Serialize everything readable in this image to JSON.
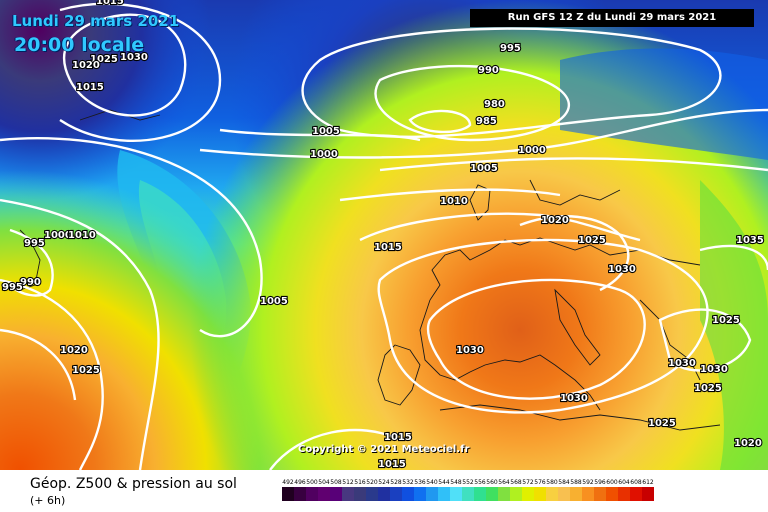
{
  "header": {
    "date": "Lundi 29 mars 2021",
    "local_time": "20:00 locale",
    "run_info": "Run GFS 12 Z du Lundi 29 mars 2021"
  },
  "copyright": "Copyright © 2021 Meteociel.fr",
  "footer": {
    "title": "Géop. Z500 & pression au sol",
    "subtitle": "(+ 6h)"
  },
  "colors": {
    "z500_scale": [
      "#200020",
      "#380040",
      "#500060",
      "#600070",
      "#580078",
      "#483880",
      "#3a3a7a",
      "#2a3a8c",
      "#2030a0",
      "#1a40c0",
      "#1050e0",
      "#1070f0",
      "#2098f0",
      "#30c0f8",
      "#50e0f8",
      "#40e0c0",
      "#30e090",
      "#40e060",
      "#80e040",
      "#b0f020",
      "#e0f000",
      "#f0e000",
      "#f8d040",
      "#f8c050",
      "#f8b030",
      "#f89020",
      "#f07010",
      "#f05000",
      "#e83000",
      "#e01000",
      "#c80000",
      "#a00000",
      "#800000",
      "#600000"
    ]
  },
  "legend": {
    "scale_values": [
      "492",
      "496",
      "500",
      "504",
      "508",
      "512",
      "516",
      "520",
      "524",
      "528",
      "532",
      "536",
      "540",
      "544",
      "548",
      "552",
      "556",
      "560",
      "564",
      "568",
      "572",
      "576",
      "580",
      "584",
      "588",
      "592",
      "596",
      "600",
      "604",
      "608",
      "612"
    ]
  },
  "isobar_labels": [
    {
      "id": "l1",
      "text": "1015"
    },
    {
      "id": "l2",
      "text": "1025"
    },
    {
      "id": "l3",
      "text": "1030"
    },
    {
      "id": "l4",
      "text": "1020"
    },
    {
      "id": "l5",
      "text": "1015"
    },
    {
      "id": "l6",
      "text": "995"
    },
    {
      "id": "l7",
      "text": "990"
    },
    {
      "id": "l8",
      "text": "980"
    },
    {
      "id": "l9",
      "text": "985"
    },
    {
      "id": "l10",
      "text": "1005"
    },
    {
      "id": "l11",
      "text": "1000"
    },
    {
      "id": "l12",
      "text": "1000"
    },
    {
      "id": "l13",
      "text": "1005"
    },
    {
      "id": "l14",
      "text": "1010"
    },
    {
      "id": "l15",
      "text": "1020"
    },
    {
      "id": "l16",
      "text": "1025"
    },
    {
      "id": "l17",
      "text": "1015"
    },
    {
      "id": "l18",
      "text": "1030"
    },
    {
      "id": "l19",
      "text": "1035"
    },
    {
      "id": "l20",
      "text": "995"
    },
    {
      "id": "l21",
      "text": "1000"
    },
    {
      "id": "l22",
      "text": "1010"
    },
    {
      "id": "l23",
      "text": "990"
    },
    {
      "id": "l24",
      "text": "995"
    },
    {
      "id": "l25",
      "text": "1005"
    },
    {
      "id": "l26",
      "text": "1020"
    },
    {
      "id": "l27",
      "text": "1025"
    },
    {
      "id": "l28",
      "text": "1030"
    },
    {
      "id": "l29",
      "text": "1025"
    },
    {
      "id": "l30",
      "text": "1030"
    },
    {
      "id": "l31",
      "text": "1030"
    },
    {
      "id": "l32",
      "text": "1025"
    },
    {
      "id": "l33",
      "text": "1030"
    },
    {
      "id": "l34",
      "text": "1025"
    },
    {
      "id": "l35",
      "text": "1015"
    },
    {
      "id": "l36",
      "text": "1015"
    },
    {
      "id": "l37",
      "text": "1020"
    }
  ]
}
